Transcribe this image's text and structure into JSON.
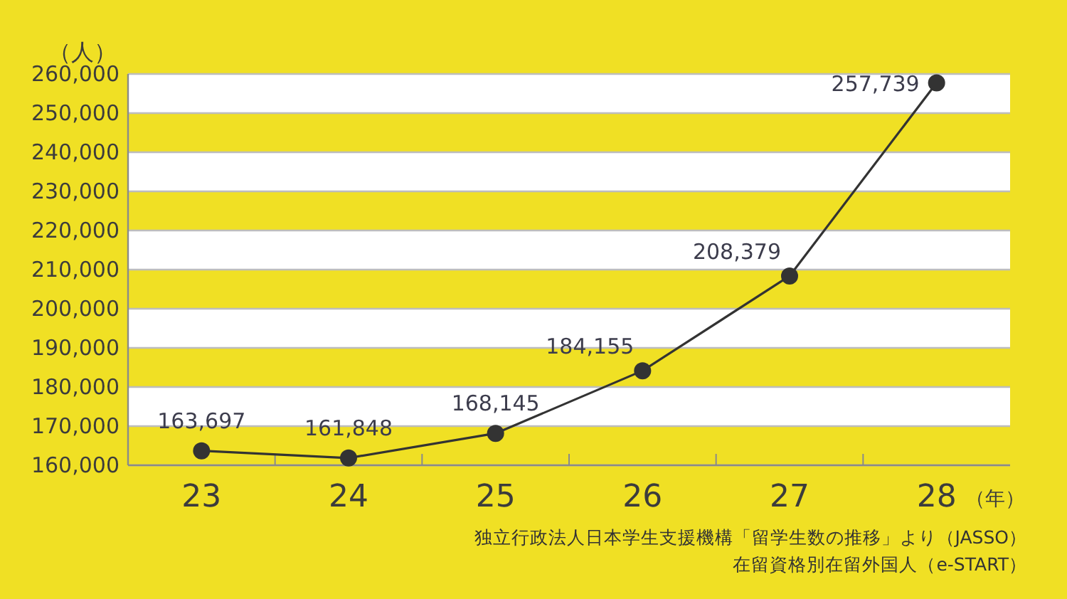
{
  "chart_data": {
    "type": "line",
    "categories": [
      "23",
      "24",
      "25",
      "26",
      "27",
      "28"
    ],
    "series": [
      {
        "color": "#333333",
        "values": [
          163697,
          161848,
          168145,
          184155,
          208379,
          257739
        ],
        "value_labels": [
          "163,697",
          "161,848",
          "168,145",
          "184,155",
          "208,379",
          "257,739"
        ]
      }
    ],
    "ylim": [
      160000,
      260000
    ],
    "yticks": [
      {
        "value": 160000,
        "label": "160,000"
      },
      {
        "value": 170000,
        "label": "170,000"
      },
      {
        "value": 180000,
        "label": "180,000"
      },
      {
        "value": 190000,
        "label": "190,000"
      },
      {
        "value": 200000,
        "label": "200,000"
      },
      {
        "value": 210000,
        "label": "210,000"
      },
      {
        "value": 220000,
        "label": "220,000"
      },
      {
        "value": 230000,
        "label": "230,000"
      },
      {
        "value": 240000,
        "label": "240,000"
      },
      {
        "value": 250000,
        "label": "250,000"
      },
      {
        "value": 260000,
        "label": "260,000"
      }
    ],
    "ylabel": "（人）",
    "xlabel": "（年）",
    "bands": [
      {
        "axis": "y",
        "from": 250000,
        "to": 260000,
        "color": "#ffffff"
      },
      {
        "axis": "y",
        "from": 230000,
        "to": 240000,
        "color": "#ffffff"
      },
      {
        "axis": "y",
        "from": 210000,
        "to": 220000,
        "color": "#ffffff"
      },
      {
        "axis": "y",
        "from": 190000,
        "to": 200000,
        "color": "#ffffff"
      },
      {
        "axis": "y",
        "from": 170000,
        "to": 180000,
        "color": "#ffffff"
      }
    ],
    "grid": "y",
    "marker": "circle",
    "line_style": "solid",
    "annotations": [
      "独立行政法人日本学生支援機構「留学生数の推移」より（JASSO）",
      "在留資格別在留外国人（e-START）"
    ]
  }
}
